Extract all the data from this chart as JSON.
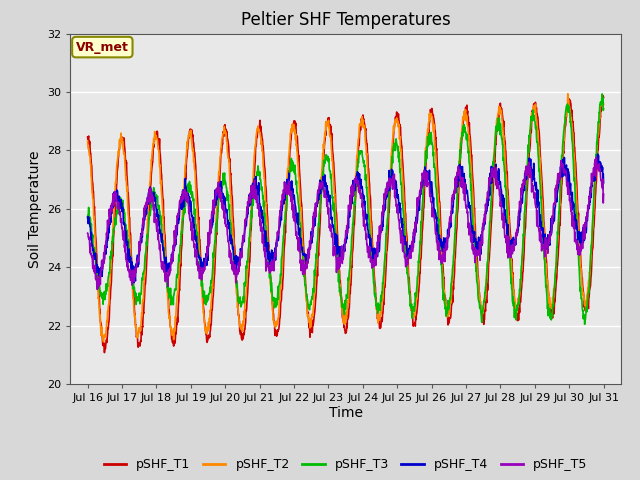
{
  "title": "Peltier SHF Temperatures",
  "xlabel": "Time",
  "ylabel": "Soil Temperature",
  "ylim": [
    20,
    32
  ],
  "xlim_days": [
    15.5,
    31.5
  ],
  "yticks": [
    20,
    22,
    24,
    26,
    28,
    30,
    32
  ],
  "xtick_days": [
    16,
    17,
    18,
    19,
    20,
    21,
    22,
    23,
    24,
    25,
    26,
    27,
    28,
    29,
    30,
    31
  ],
  "xtick_labels": [
    "Jul 16",
    "Jul 17",
    "Jul 18",
    "Jul 19",
    "Jul 20",
    "Jul 21",
    "Jul 22",
    "Jul 23",
    "Jul 24",
    "Jul 25",
    "Jul 26",
    "Jul 27",
    "Jul 28",
    "Jul 29",
    "Jul 30",
    "Jul 31"
  ],
  "series_colors": [
    "#cc0000",
    "#ff8800",
    "#00bb00",
    "#0000cc",
    "#9900bb"
  ],
  "series_labels": [
    "pSHF_T1",
    "pSHF_T2",
    "pSHF_T3",
    "pSHF_T4",
    "pSHF_T5"
  ],
  "annotation_text": "VR_met",
  "annotation_color": "#880000",
  "annotation_bg": "#ffffcc",
  "annotation_edge": "#888800",
  "fig_bg": "#d8d8d8",
  "plot_bg": "#e8e8e8",
  "grid_color": "#ffffff",
  "title_fontsize": 12,
  "axis_label_fontsize": 10,
  "tick_fontsize": 8,
  "legend_fontsize": 9,
  "line_width": 1.2,
  "n_points": 1500
}
